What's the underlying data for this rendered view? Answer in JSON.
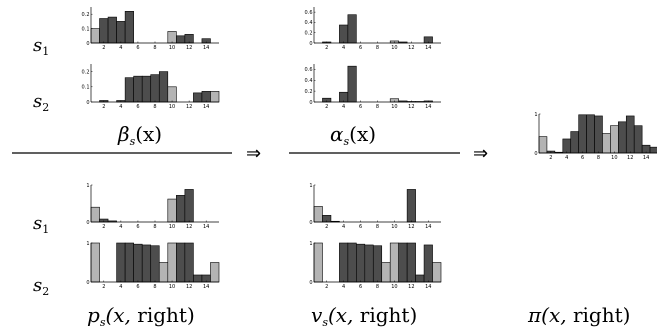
{
  "row_labels": {
    "top_s1": {
      "base": "s",
      "sub": "1"
    },
    "top_s2": {
      "base": "s",
      "sub": "2"
    },
    "bot_s1": {
      "base": "s",
      "sub": "1"
    },
    "bot_s2": {
      "base": "s",
      "sub": "2"
    }
  },
  "captions": {
    "beta": "β",
    "beta_sub": "s",
    "beta_arg": "(x)",
    "alpha": "α",
    "alpha_sub": "s",
    "alpha_arg": "(x)",
    "p": "p",
    "p_sub": "s",
    "p_arg_open": "(x, ",
    "p_arg_word": "right",
    "p_arg_close": ")",
    "v": "v",
    "v_sub": "s",
    "v_arg_open": "(x, ",
    "v_arg_word": "right",
    "v_arg_close": ")",
    "pi": "π",
    "pi_arg_open": "(x, ",
    "pi_arg_word": "right",
    "pi_arg_close": ")"
  },
  "arrows": [
    "⇒",
    "⇒"
  ],
  "colors": {
    "dark": "#4d4d4d",
    "light": "#b4b4b4"
  },
  "chart_data": [
    {
      "id": "beta_s1",
      "type": "bar",
      "x": [
        1,
        2,
        3,
        4,
        5,
        6,
        7,
        8,
        9,
        10,
        11,
        12,
        13,
        14,
        15
      ],
      "values": [
        0.1,
        0.17,
        0.18,
        0.15,
        0.22,
        0,
        0,
        0,
        0,
        0.08,
        0.05,
        0.06,
        0,
        0.03,
        0
      ],
      "shade": [
        "l",
        "d",
        "d",
        "d",
        "d",
        "d",
        "d",
        "d",
        "d",
        "l",
        "d",
        "d",
        "d",
        "d",
        "d"
      ],
      "ylim": [
        0,
        0.25
      ],
      "yticks": [
        "0",
        "0.1",
        "0.2"
      ],
      "xticks": [
        "2",
        "4",
        "6",
        "8",
        "10",
        "12",
        "14"
      ]
    },
    {
      "id": "beta_s2",
      "type": "bar",
      "x": [
        1,
        2,
        3,
        4,
        5,
        6,
        7,
        8,
        9,
        10,
        11,
        12,
        13,
        14,
        15
      ],
      "values": [
        0,
        0.01,
        0,
        0.01,
        0.16,
        0.17,
        0.17,
        0.18,
        0.2,
        0.1,
        0,
        0,
        0.06,
        0.07,
        0.07
      ],
      "shade": [
        "d",
        "d",
        "d",
        "d",
        "d",
        "d",
        "d",
        "d",
        "d",
        "l",
        "d",
        "d",
        "d",
        "d",
        "l"
      ],
      "ylim": [
        0,
        0.25
      ],
      "yticks": [
        "0",
        "0.1",
        "0.2"
      ],
      "xticks": [
        "2",
        "4",
        "6",
        "8",
        "10",
        "12",
        "14"
      ]
    },
    {
      "id": "alpha_s1",
      "type": "bar",
      "x": [
        1,
        2,
        3,
        4,
        5,
        6,
        7,
        8,
        9,
        10,
        11,
        12,
        13,
        14,
        15
      ],
      "values": [
        0,
        0.02,
        0,
        0.35,
        0.55,
        0,
        0,
        0,
        0,
        0.04,
        0.02,
        0,
        0,
        0.12,
        0
      ],
      "shade": [
        "d",
        "d",
        "d",
        "d",
        "d",
        "d",
        "d",
        "d",
        "d",
        "l",
        "d",
        "d",
        "d",
        "d",
        "d"
      ],
      "ylim": [
        0,
        0.7
      ],
      "yticks": [
        "0",
        "0.2",
        "0.4",
        "0.6"
      ],
      "xticks": [
        "2",
        "4",
        "6",
        "8",
        "10",
        "12",
        "14"
      ]
    },
    {
      "id": "alpha_s2",
      "type": "bar",
      "x": [
        1,
        2,
        3,
        4,
        5,
        6,
        7,
        8,
        9,
        10,
        11,
        12,
        13,
        14,
        15
      ],
      "values": [
        0,
        0.07,
        0,
        0.18,
        0.66,
        0,
        0,
        0,
        0,
        0.06,
        0.02,
        0.01,
        0.01,
        0.02,
        0
      ],
      "shade": [
        "d",
        "d",
        "d",
        "d",
        "d",
        "d",
        "d",
        "d",
        "d",
        "l",
        "d",
        "d",
        "d",
        "d",
        "d"
      ],
      "ylim": [
        0,
        0.7
      ],
      "yticks": [
        "0",
        "0.2",
        "0.4",
        "0.6"
      ],
      "xticks": [
        "2",
        "4",
        "6",
        "8",
        "10",
        "12",
        "14"
      ]
    },
    {
      "id": "pi_right",
      "type": "bar",
      "x": [
        1,
        2,
        3,
        4,
        5,
        6,
        7,
        8,
        9,
        10,
        11,
        12,
        13,
        14,
        15
      ],
      "values": [
        0.42,
        0.05,
        0.02,
        0.36,
        0.55,
        0.98,
        0.98,
        0.95,
        0.5,
        0.7,
        0.8,
        0.95,
        0.7,
        0.2,
        0.15
      ],
      "shade": [
        "l",
        "d",
        "d",
        "d",
        "d",
        "d",
        "d",
        "d",
        "l",
        "l",
        "d",
        "d",
        "d",
        "d",
        "d"
      ],
      "ylim": [
        0,
        1
      ],
      "yticks": [
        "0",
        "1"
      ],
      "xticks": [
        "2",
        "4",
        "6",
        "8",
        "10",
        "12",
        "14"
      ]
    },
    {
      "id": "p_s1",
      "type": "bar",
      "x": [
        1,
        2,
        3,
        4,
        5,
        6,
        7,
        8,
        9,
        10,
        11,
        12,
        13,
        14,
        15
      ],
      "values": [
        0.4,
        0.08,
        0.03,
        0,
        0,
        0,
        0,
        0,
        0,
        0.62,
        0.72,
        0.88,
        0,
        0,
        0
      ],
      "shade": [
        "l",
        "d",
        "d",
        "d",
        "d",
        "d",
        "d",
        "d",
        "d",
        "l",
        "d",
        "d",
        "d",
        "d",
        "d"
      ],
      "ylim": [
        0,
        1
      ],
      "yticks": [
        "0",
        "1"
      ],
      "xticks": [
        "2",
        "4",
        "6",
        "8",
        "10",
        "12",
        "14"
      ]
    },
    {
      "id": "p_s2",
      "type": "bar",
      "x": [
        1,
        2,
        3,
        4,
        5,
        6,
        7,
        8,
        9,
        10,
        11,
        12,
        13,
        14,
        15
      ],
      "values": [
        1,
        0,
        0,
        1,
        1,
        0.97,
        0.95,
        0.93,
        0.5,
        1,
        1,
        1,
        0.18,
        0.18,
        0.5
      ],
      "shade": [
        "l",
        "d",
        "d",
        "d",
        "d",
        "d",
        "d",
        "d",
        "l",
        "l",
        "d",
        "d",
        "d",
        "d",
        "l"
      ],
      "ylim": [
        0,
        1
      ],
      "yticks": [
        "0",
        "1"
      ],
      "xticks": [
        "2",
        "4",
        "6",
        "8",
        "10",
        "12",
        "14"
      ]
    },
    {
      "id": "v_s1",
      "type": "bar",
      "x": [
        1,
        2,
        3,
        4,
        5,
        6,
        7,
        8,
        9,
        10,
        11,
        12,
        13,
        14,
        15
      ],
      "values": [
        0.42,
        0.18,
        0.02,
        0,
        0,
        0,
        0,
        0,
        0,
        0,
        0,
        0.88,
        0,
        0,
        0
      ],
      "shade": [
        "l",
        "d",
        "d",
        "d",
        "d",
        "d",
        "d",
        "d",
        "d",
        "l",
        "d",
        "d",
        "d",
        "d",
        "d"
      ],
      "ylim": [
        0,
        1
      ],
      "yticks": [
        "0",
        "1"
      ],
      "xticks": [
        "2",
        "4",
        "6",
        "8",
        "10",
        "12",
        "14"
      ]
    },
    {
      "id": "v_s2",
      "type": "bar",
      "x": [
        1,
        2,
        3,
        4,
        5,
        6,
        7,
        8,
        9,
        10,
        11,
        12,
        13,
        14,
        15
      ],
      "values": [
        1,
        0,
        0,
        1,
        1,
        0.97,
        0.95,
        0.93,
        0.5,
        1,
        1,
        1,
        0.18,
        0.95,
        0.5
      ],
      "shade": [
        "l",
        "d",
        "d",
        "d",
        "d",
        "d",
        "d",
        "d",
        "l",
        "l",
        "d",
        "d",
        "d",
        "d",
        "l"
      ],
      "ylim": [
        0,
        1
      ],
      "yticks": [
        "0",
        "1"
      ],
      "xticks": [
        "2",
        "4",
        "6",
        "8",
        "10",
        "12",
        "14"
      ]
    }
  ]
}
